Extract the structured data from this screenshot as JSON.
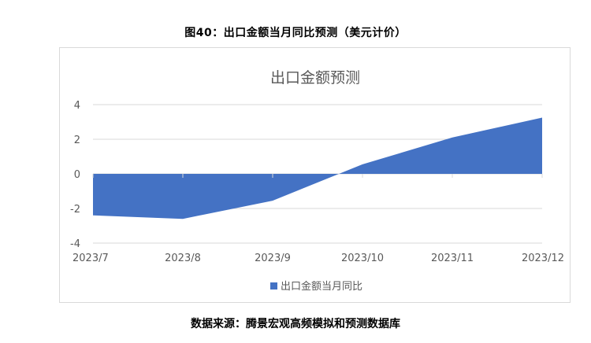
{
  "figure_caption": "图40：出口金额当月同比预测（美元计价）",
  "source_note": "数据来源：腾景宏观高频模拟和预测数据库",
  "colors": {
    "series": "#4472C4",
    "grid": "#d9d9d9",
    "axis_text": "#595959"
  },
  "chart_data": {
    "type": "area",
    "title": "出口金额预测",
    "categories": [
      "2023/7",
      "2023/8",
      "2023/9",
      "2023/10",
      "2023/11",
      "2023/12"
    ],
    "series": [
      {
        "name": "出口金额当月同比",
        "values": [
          -2.4,
          -2.6,
          -1.55,
          0.55,
          2.1,
          3.25
        ]
      }
    ],
    "ylim": [
      -4,
      4
    ],
    "yticks": [
      "4",
      "2",
      "0",
      "-2",
      "-4"
    ],
    "ytick_values": [
      4,
      2,
      0,
      -2,
      -4
    ],
    "grid": true,
    "legend_position": "bottom"
  }
}
